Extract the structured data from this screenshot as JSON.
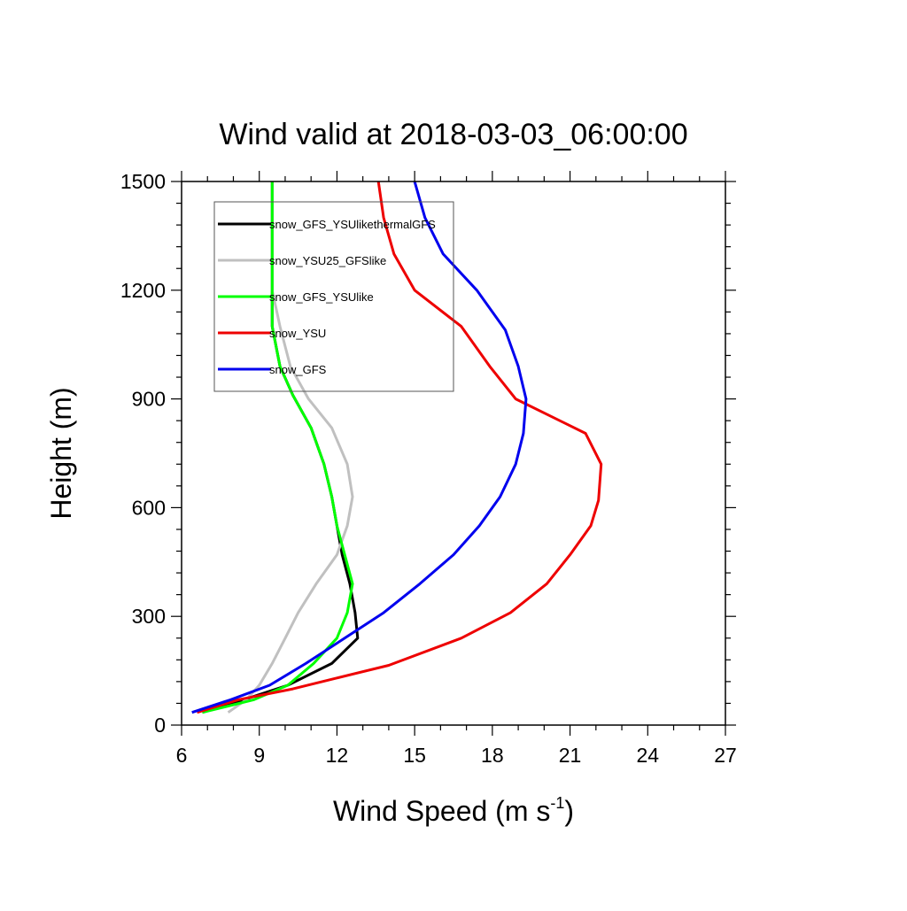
{
  "chart_data": {
    "type": "line",
    "title": "Wind valid at 2018-03-03_06:00:00",
    "xlabel": "Wind Speed (m s",
    "xlabel_sup": "-1",
    "xlabel_tail": ")",
    "ylabel": "Height (m)",
    "xlim": [
      6,
      27
    ],
    "ylim": [
      0,
      1500
    ],
    "xticks": [
      6,
      9,
      12,
      15,
      18,
      21,
      24,
      27
    ],
    "yticks": [
      0,
      300,
      600,
      900,
      1200,
      1500
    ],
    "xtick_labels": [
      "6",
      "9",
      "12",
      "15",
      "18",
      "21",
      "24",
      "27"
    ],
    "ytick_labels": [
      "0",
      "300",
      "600",
      "900",
      "1200",
      "1500"
    ],
    "grid": false,
    "legend_position": "top-left",
    "series": [
      {
        "name": "snow_GFS_YSUlikethermalGFS",
        "color": "#000000",
        "x": [
          6.8,
          8.4,
          10.1,
          11.8,
          12.8,
          12.7,
          12.5,
          12.2,
          12.0,
          11.8,
          11.5,
          11.0,
          10.3,
          9.8,
          9.5,
          9.5,
          9.5,
          9.5,
          9.5,
          9.5
        ],
        "y": [
          35,
          70,
          110,
          170,
          240,
          310,
          390,
          470,
          550,
          630,
          720,
          820,
          910,
          990,
          1100,
          1200,
          1300,
          1400,
          1450,
          1500
        ]
      },
      {
        "name": "snow_YSU25_GFSlike",
        "color": "#c0c0c0",
        "x": [
          7.8,
          8.5,
          9.0,
          9.5,
          10.0,
          10.5,
          11.2,
          12.0,
          12.4,
          12.6,
          12.4,
          11.8,
          10.9,
          10.2,
          9.8,
          9.5,
          9.5,
          9.5,
          9.5,
          9.5
        ],
        "y": [
          35,
          70,
          110,
          170,
          240,
          310,
          390,
          470,
          550,
          630,
          720,
          820,
          900,
          990,
          1100,
          1200,
          1300,
          1400,
          1450,
          1500
        ]
      },
      {
        "name": "snow_GFS_YSUlike",
        "color": "#00ff00",
        "x": [
          6.8,
          8.8,
          10.1,
          11.1,
          12.0,
          12.4,
          12.6,
          12.3,
          12.0,
          11.8,
          11.5,
          11.0,
          10.3,
          9.8,
          9.5,
          9.5,
          9.5,
          9.5,
          9.5,
          9.5
        ],
        "y": [
          35,
          70,
          110,
          170,
          240,
          310,
          390,
          470,
          550,
          630,
          720,
          820,
          910,
          990,
          1100,
          1200,
          1300,
          1400,
          1450,
          1500
        ]
      },
      {
        "name": "snow_YSU",
        "color": "#ee0000",
        "x": [
          6.6,
          8.2,
          10.3,
          12.0,
          14.0,
          16.8,
          18.7,
          20.1,
          21.0,
          21.8,
          22.1,
          22.2,
          21.6,
          18.9,
          17.9,
          16.8,
          15.0,
          14.2,
          13.8,
          13.6
        ],
        "y": [
          35,
          70,
          100,
          130,
          165,
          240,
          310,
          390,
          470,
          550,
          620,
          720,
          805,
          900,
          990,
          1100,
          1200,
          1300,
          1400,
          1500
        ]
      },
      {
        "name": "snow_GFS",
        "color": "#0000ee",
        "x": [
          6.4,
          7.9,
          9.4,
          10.8,
          12.3,
          13.8,
          15.2,
          16.5,
          17.5,
          18.3,
          18.9,
          19.2,
          19.3,
          19.0,
          18.5,
          17.4,
          16.1,
          15.4,
          15.0
        ],
        "y": [
          35,
          70,
          110,
          170,
          240,
          310,
          390,
          470,
          550,
          630,
          720,
          805,
          900,
          990,
          1090,
          1200,
          1300,
          1400,
          1500
        ]
      }
    ]
  }
}
